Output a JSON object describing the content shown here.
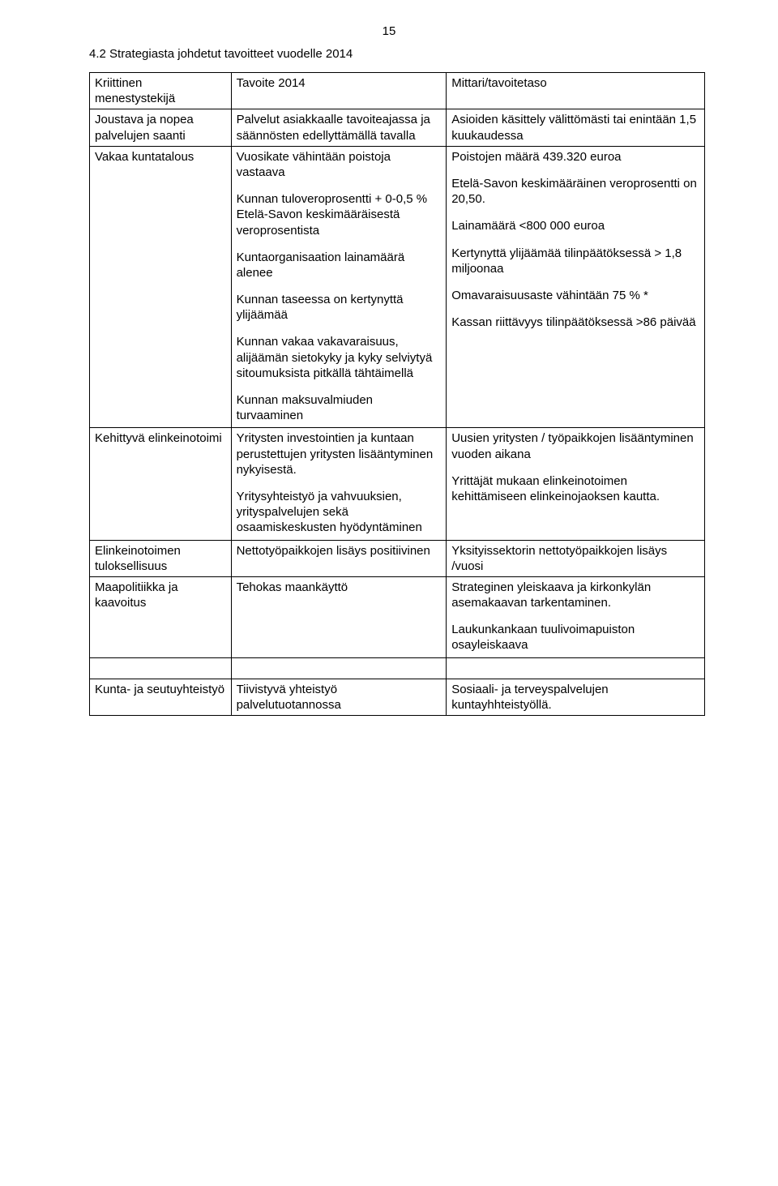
{
  "page_number": "15",
  "heading": "4.2 Strategiasta johdetut tavoitteet vuodelle 2014",
  "table": {
    "header": {
      "col1": "Kriittinen menestystekijä",
      "col2": "Tavoite 2014",
      "col3": "Mittari/tavoitetaso"
    },
    "rows": [
      {
        "c1": "Joustava ja nopea palvelujen saanti",
        "c2": "Palvelut asiakkaalle tavoiteajassa ja säännösten edellyttämällä tavalla",
        "c3": "Asioiden käsittely välittömästi tai enintään 1,5 kuukaudessa"
      },
      {
        "c1": "Vakaa kuntatalous",
        "c2_paras": [
          "Vuosikate vähintään poistoja vastaava",
          "Kunnan tuloveroprosentti + 0-0,5 % Etelä-Savon keskimääräisestä veroprosentista",
          "Kuntaorganisaation lainamäärä alenee",
          "Kunnan taseessa on kertynyttä ylijäämää",
          "Kunnan vakaa vakavaraisuus, alijäämän sietokyky ja kyky selviytyä sitoumuksista pitkällä tähtäimellä",
          "Kunnan maksuvalmiuden turvaaminen"
        ],
        "c3_paras": [
          "Poistojen määrä 439.320 euroa",
          "Etelä-Savon keskimääräinen veroprosentti on 20,50.",
          "Lainamäärä <800 000 euroa",
          "Kertynyttä ylijäämää tilinpäätöksessä > 1,8 miljoonaa",
          "Omavaraisuusaste vähintään 75 % *",
          "Kassan riittävyys tilinpäätöksessä >86 päivää"
        ]
      },
      {
        "c1": "Kehittyvä elinkeinotoimi",
        "c2_paras": [
          "Yritysten investointien ja kuntaan perustettujen yritysten lisääntyminen nykyisestä.",
          "Yritysyhteistyö ja vahvuuksien, yrityspalvelujen sekä osaamiskeskusten hyödyntäminen"
        ],
        "c3_paras": [
          "Uusien yritysten / työpaikkojen lisääntyminen vuoden aikana",
          "Yrittäjät mukaan elinkeinotoimen kehittämiseen elinkeinojaoksen kautta."
        ]
      },
      {
        "c1": "Elinkeinotoimen tuloksellisuus",
        "c2": "Nettotyöpaikkojen lisäys positiivinen",
        "c3": "Yksityissektorin nettotyöpaikkojen lisäys /vuosi"
      },
      {
        "c1": "Maapolitiikka ja kaavoitus",
        "c2": "Tehokas maankäyttö",
        "c3_paras": [
          " Strateginen yleiskaava ja kirkonkylän asemakaavan tarkentaminen.",
          " Laukunkankaan tuulivoimapuiston osayleiskaava"
        ]
      },
      {
        "c1": "Kunta- ja seutuyhteistyö",
        "c2": "Tiivistyvä yhteistyö palvelutuotannossa",
        "c3": "Sosiaali- ja terveyspalvelujen kuntayhhteistyöllä.",
        "spacer_before": true
      }
    ]
  }
}
